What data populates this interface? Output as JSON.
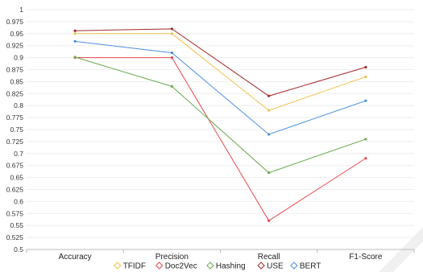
{
  "chart_data": {
    "type": "line",
    "categories": [
      "Accuracy",
      "Precision",
      "Recall",
      "F1-Score"
    ],
    "ylim": [
      0.5,
      1
    ],
    "ytick_step": 0.025,
    "grid": true,
    "legend_position": "bottom",
    "series": [
      {
        "name": "TFIDF",
        "color": "#f2c14e",
        "values": [
          0.95,
          0.95,
          0.79,
          0.86
        ]
      },
      {
        "name": "Doc2Vec",
        "color": "#e8474a",
        "values": [
          0.9,
          0.9,
          0.56,
          0.69
        ]
      },
      {
        "name": "Hashing",
        "color": "#6aaa4f",
        "values": [
          0.901,
          0.84,
          0.66,
          0.73
        ]
      },
      {
        "name": "USE",
        "color": "#a52a2a",
        "values": [
          0.956,
          0.96,
          0.82,
          0.88
        ]
      },
      {
        "name": "BERT",
        "color": "#4a90e2",
        "values": [
          0.934,
          0.91,
          0.74,
          0.81
        ]
      }
    ]
  }
}
